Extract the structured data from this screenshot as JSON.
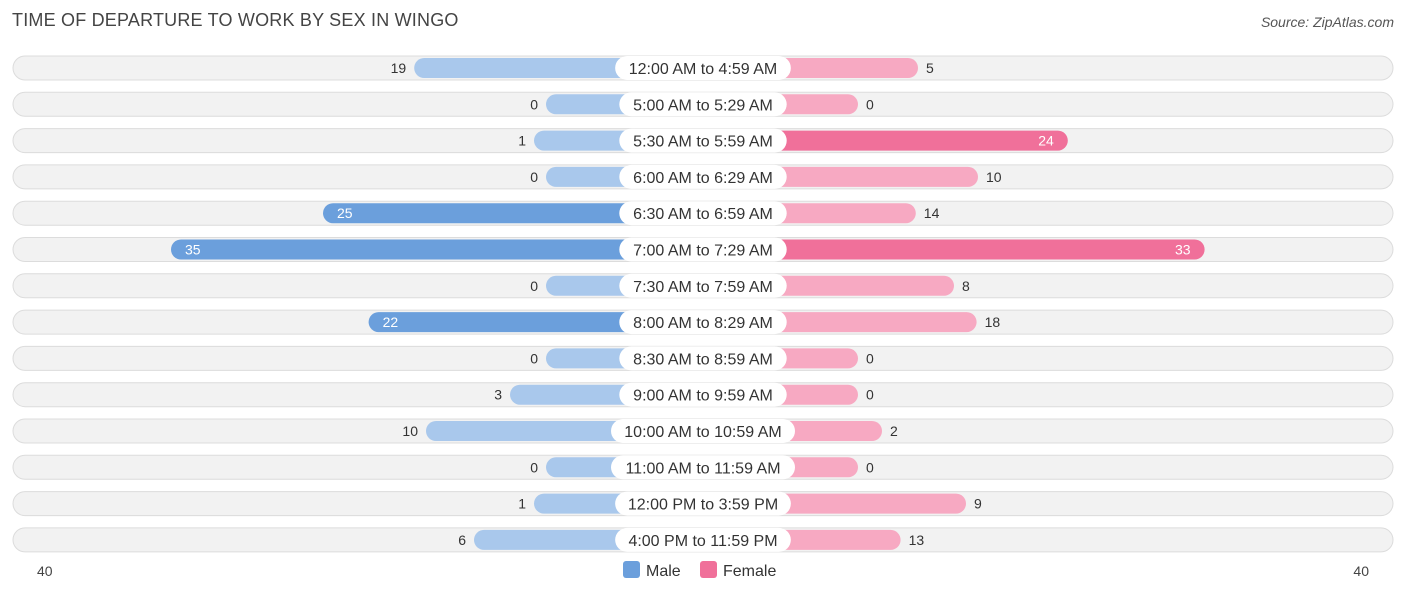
{
  "header": {
    "title": "TIME OF DEPARTURE TO WORK BY SEX IN WINGO",
    "source": "Source: ZipAtlas.com"
  },
  "chart_data": {
    "type": "bar",
    "orientation": "horizontal-diverging",
    "title": "TIME OF DEPARTURE TO WORK BY SEX IN WINGO",
    "categories": [
      "12:00 AM to 4:59 AM",
      "5:00 AM to 5:29 AM",
      "5:30 AM to 5:59 AM",
      "6:00 AM to 6:29 AM",
      "6:30 AM to 6:59 AM",
      "7:00 AM to 7:29 AM",
      "7:30 AM to 7:59 AM",
      "8:00 AM to 8:29 AM",
      "8:30 AM to 8:59 AM",
      "9:00 AM to 9:59 AM",
      "10:00 AM to 10:59 AM",
      "11:00 AM to 11:59 AM",
      "12:00 PM to 3:59 PM",
      "4:00 PM to 11:59 PM"
    ],
    "series": [
      {
        "name": "Male",
        "color": "#6b9fdc",
        "values": [
          19,
          0,
          1,
          0,
          25,
          35,
          0,
          22,
          0,
          3,
          10,
          0,
          1,
          6
        ]
      },
      {
        "name": "Female",
        "color": "#f0709a",
        "values": [
          5,
          0,
          24,
          10,
          14,
          33,
          8,
          18,
          0,
          0,
          2,
          0,
          9,
          13
        ]
      }
    ],
    "axis": {
      "left_label": "40",
      "right_label": "40",
      "max": 40
    },
    "legend": [
      "Male",
      "Female"
    ],
    "legend_position": "bottom-center",
    "colors": {
      "male": "#6b9fdc",
      "male_light": "#a9c8ec",
      "female": "#f0709a",
      "female_light": "#f7a9c2"
    }
  }
}
